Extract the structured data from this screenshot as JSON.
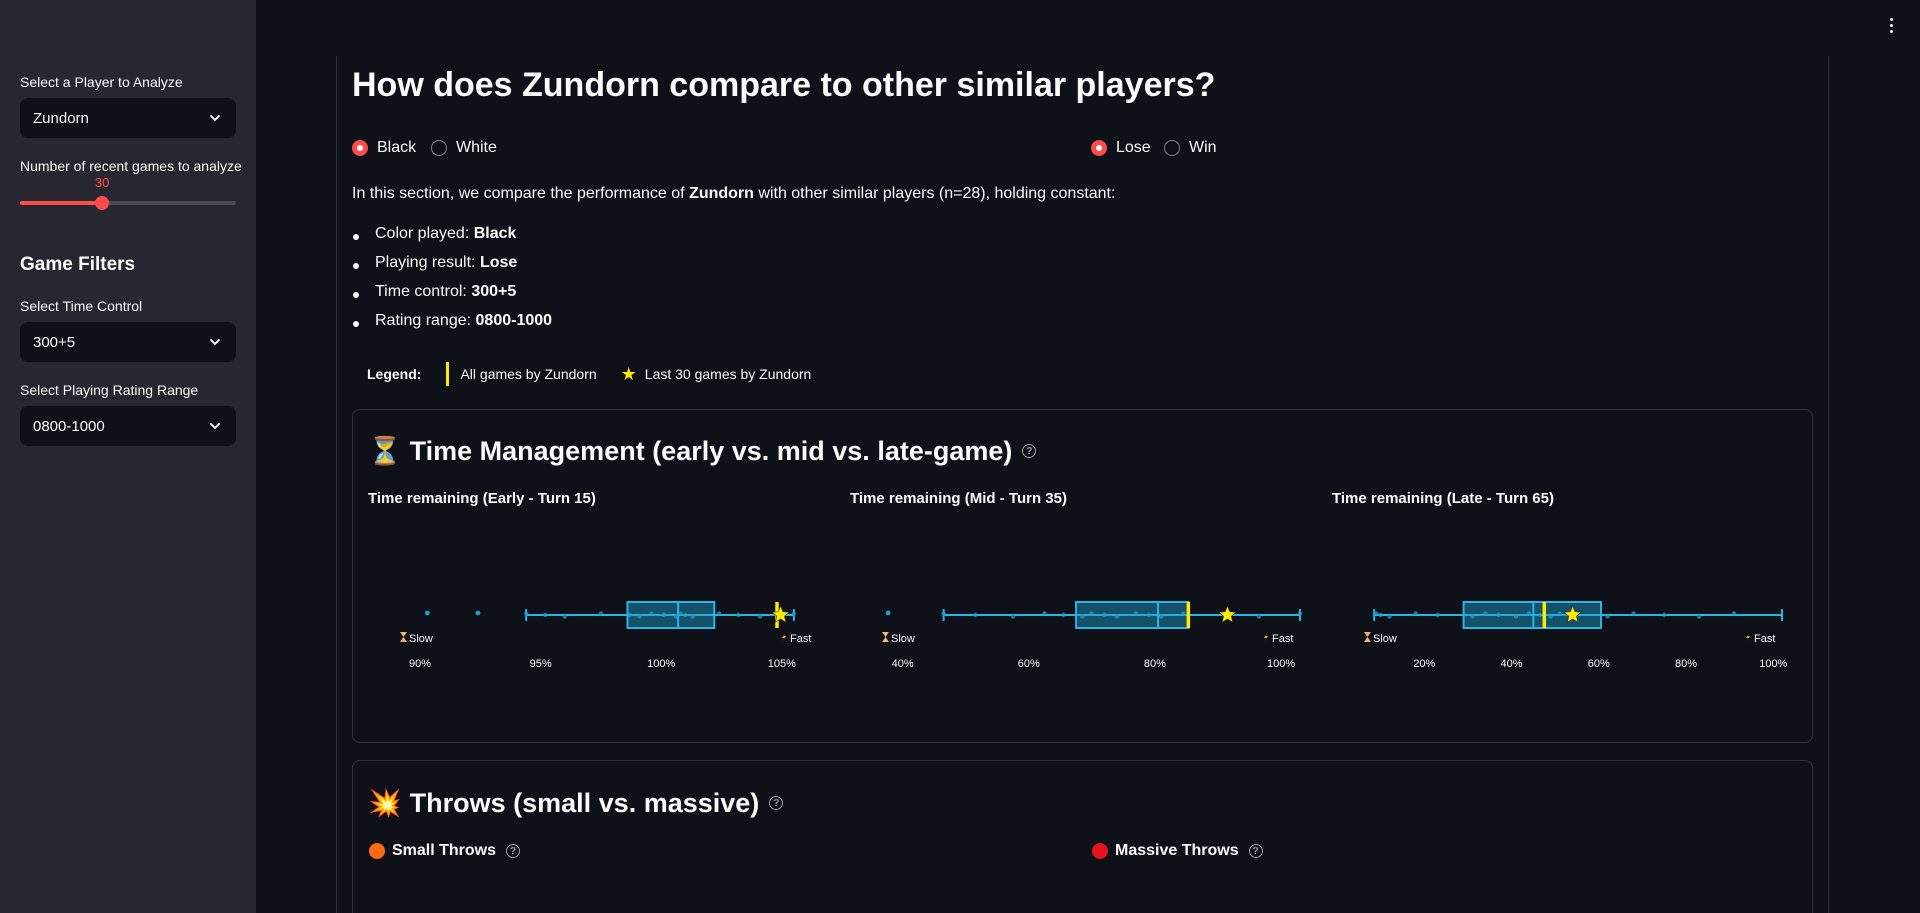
{
  "sidebar": {
    "player_label": "Select a Player to Analyze",
    "player_value": "Zundorn",
    "games_label": "Number of recent games to analyze",
    "games_value": "30",
    "games_fraction": 0.38,
    "filters_heading": "Game Filters",
    "time_control_label": "Select Time Control",
    "time_control_value": "300+5",
    "rating_label": "Select Playing Rating Range",
    "rating_value": "0800-1000"
  },
  "main": {
    "title": "How does Zundorn compare to other similar players?",
    "color_options": [
      {
        "label": "Black",
        "selected": true
      },
      {
        "label": "White",
        "selected": false
      }
    ],
    "result_options": [
      {
        "label": "Lose",
        "selected": true
      },
      {
        "label": "Win",
        "selected": false
      }
    ],
    "intro_prefix": "In this section, we compare the performance of ",
    "intro_player": "Zundorn",
    "intro_suffix": " with other similar players (n=28), holding constant:",
    "bullets": [
      {
        "label": "Color played: ",
        "value": "Black"
      },
      {
        "label": "Playing result: ",
        "value": "Lose"
      },
      {
        "label": "Time control: ",
        "value": "300+5"
      },
      {
        "label": "Rating range: ",
        "value": "0800-1000"
      }
    ],
    "legend": {
      "label": "Legend:",
      "all_games": "All games by Zundorn",
      "last_games": "Last 30 games by Zundorn",
      "star_glyph": "★"
    }
  },
  "time_management": {
    "icon": "⏳",
    "title": "Time Management (early vs. mid vs. late-game)",
    "help": "?",
    "slow_label": "Slow",
    "fast_label": "Fast",
    "slow_icon": "hourglass-icon",
    "fast_icon": "lightning-icon"
  },
  "chart_data": [
    {
      "type": "box",
      "title": "Time remaining (Early - Turn 15)",
      "xlim": [
        89.5,
        106.5
      ],
      "ticks": [
        90,
        95,
        100,
        105
      ],
      "tick_labels": [
        "90%",
        "95%",
        "100%",
        "105%"
      ],
      "whisker_low": 94.4,
      "q1": 98.6,
      "median": 100.7,
      "q3": 102.2,
      "whisker_high": 105.5,
      "outliers": [
        90.3,
        92.4
      ],
      "points": [
        94.4,
        95.2,
        96,
        97.5,
        98.7,
        99.1,
        99.6,
        100.1,
        100.6,
        100.8,
        101,
        101.3,
        102.4,
        103.2,
        104.1,
        105.5
      ],
      "all_games_marker": 104.8,
      "last_games_marker": 104.95
    },
    {
      "type": "box",
      "title": "Time remaining (Mid - Turn 35)",
      "xlim": [
        38,
        103
      ],
      "ticks": [
        40,
        60,
        80,
        100
      ],
      "tick_labels": [
        "40%",
        "60%",
        "80%",
        "100%"
      ],
      "whisker_low": 46.5,
      "q1": 67.5,
      "median": 80.5,
      "q3": 85.3,
      "whisker_high": 103,
      "outliers": [
        37.7
      ],
      "points": [
        46.5,
        51.5,
        57.5,
        62.5,
        65.5,
        68.5,
        70,
        72,
        74,
        77,
        79,
        81,
        84.5,
        91,
        96.5,
        103
      ],
      "all_games_marker": 85.3,
      "last_games_marker": 91.5
    },
    {
      "type": "box",
      "title": "Time remaining (Late - Turn 65)",
      "xlim": [
        8,
        102
      ],
      "ticks": [
        20,
        40,
        60,
        80,
        100
      ],
      "tick_labels": [
        "20%",
        "40%",
        "60%",
        "80%",
        "100%"
      ],
      "whisker_low": 8.5,
      "q1": 29,
      "median": 45,
      "q3": 60.5,
      "whisker_high": 102,
      "outliers": [],
      "points": [
        9,
        10,
        12,
        18,
        23,
        31,
        34,
        37,
        41,
        44,
        46.5,
        49,
        51,
        55,
        62,
        68,
        75,
        83,
        91
      ],
      "all_games_marker": 47.5,
      "last_games_marker": 54
    }
  ],
  "throws": {
    "icon": "💥",
    "title": "Throws (small vs. massive)",
    "help": "?",
    "small_label": "Small Throws",
    "massive_label": "Massive Throws",
    "small_color": "#ff6a13",
    "massive_color": "#e8141c"
  },
  "colors": {
    "accent": "#ff4b4b",
    "box_fill": "#1f9fce",
    "box_stroke": "#29b5e8",
    "marker": "#ffea00",
    "tick": "#fafafa"
  }
}
